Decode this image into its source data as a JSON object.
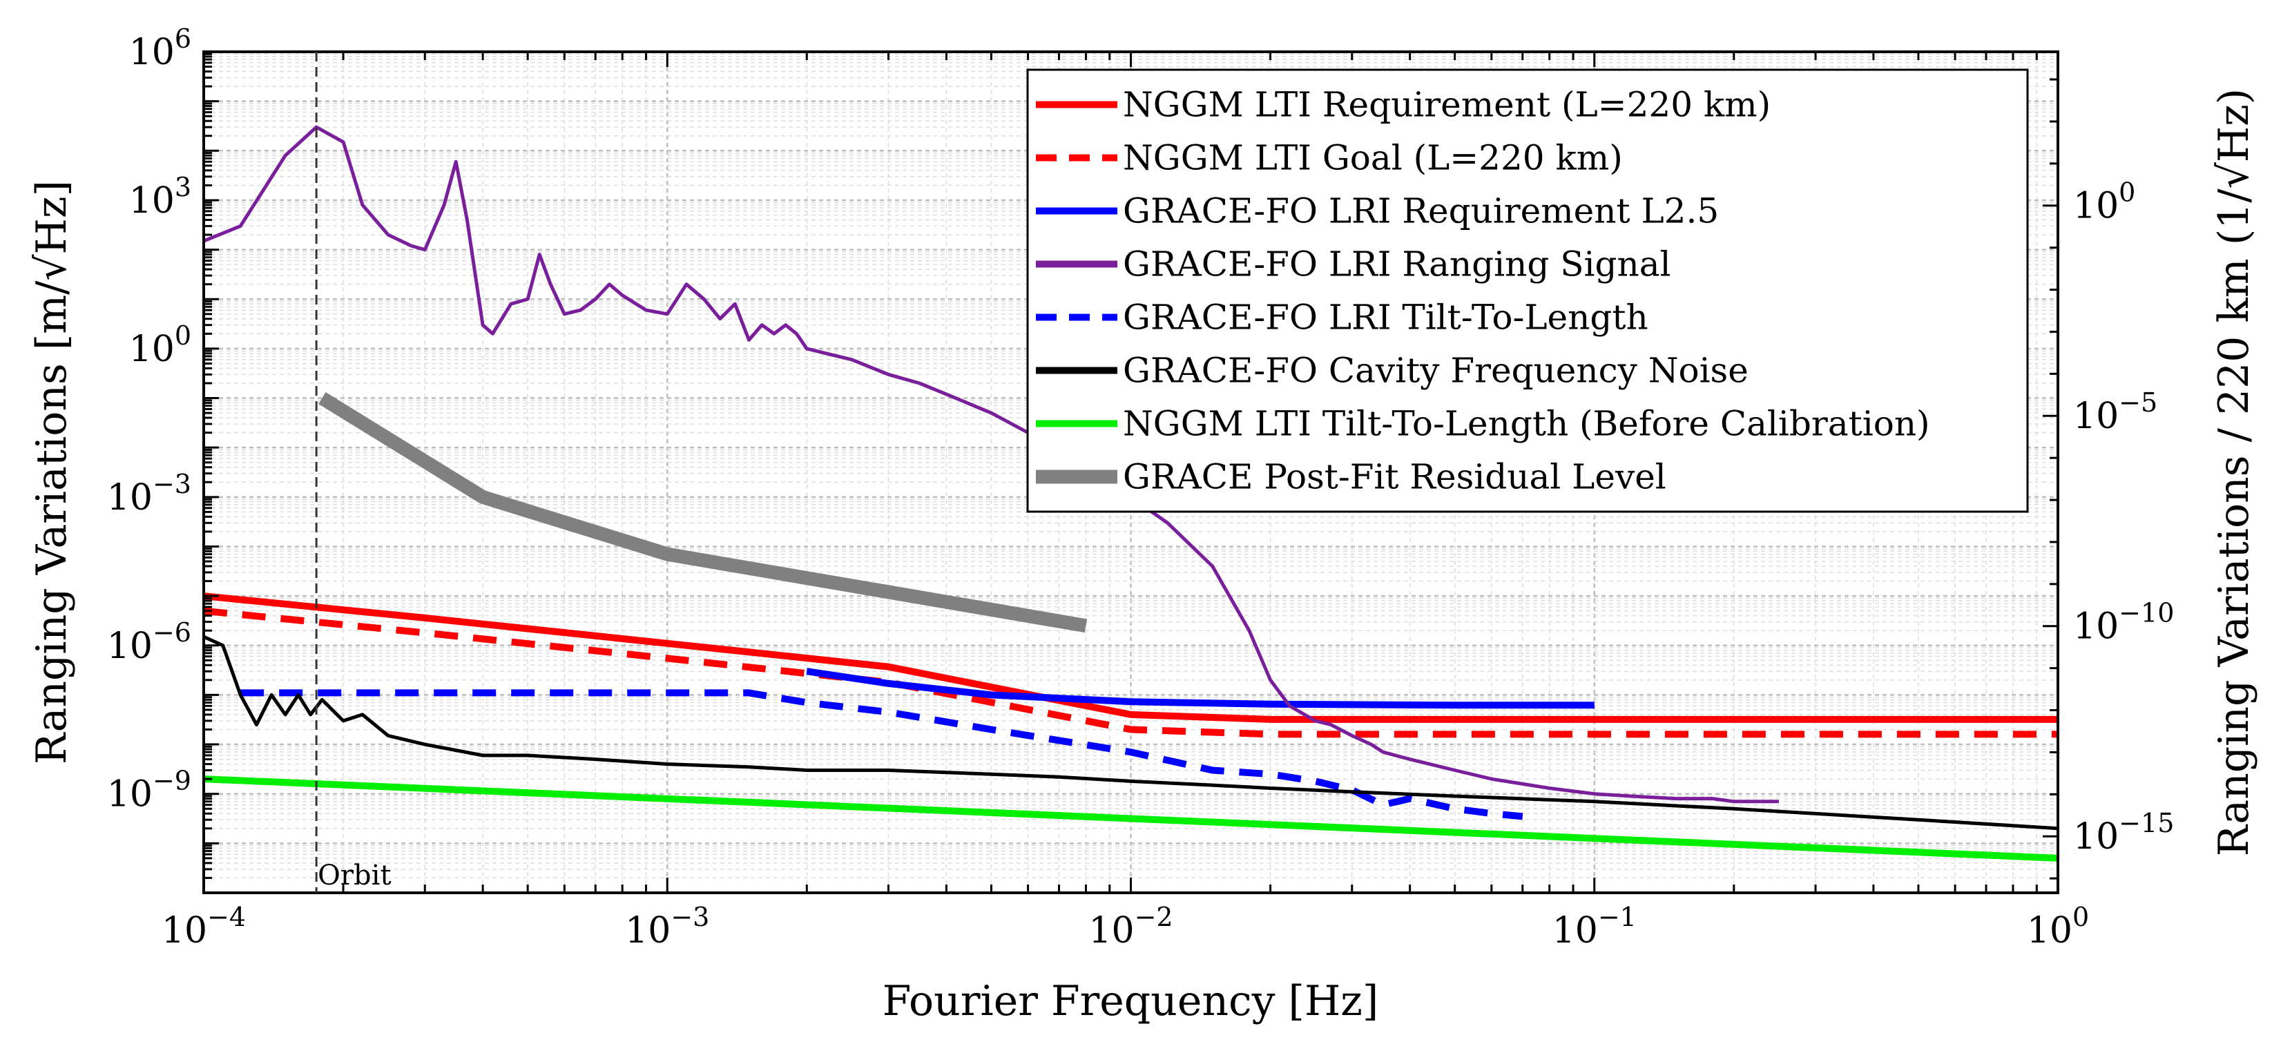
{
  "chart_data": {
    "type": "line",
    "xscale": "log",
    "yscale": "log",
    "xlabel": "Fourier Frequency [Hz]",
    "ylabel": "Ranging Variations [m/√Hz]",
    "ylabel_right": "Ranging Variations / 220 km (1/√Hz)",
    "xlim": [
      0.0001,
      1
    ],
    "ylim": [
      1e-11,
      1000000.0
    ],
    "ylim_right": [
      4.545e-17,
      4545
    ],
    "x_ticks": [
      {
        "value": 0.0001,
        "base": "10",
        "exp": "−4"
      },
      {
        "value": 0.001,
        "base": "10",
        "exp": "−3"
      },
      {
        "value": 0.01,
        "base": "10",
        "exp": "−2"
      },
      {
        "value": 0.1,
        "base": "10",
        "exp": "−1"
      },
      {
        "value": 1,
        "base": "10",
        "exp": "0"
      }
    ],
    "y_ticks": [
      {
        "value": 1e-09,
        "base": "10",
        "exp": "−9"
      },
      {
        "value": 1e-06,
        "base": "10",
        "exp": "−6"
      },
      {
        "value": 0.001,
        "base": "10",
        "exp": "−3"
      },
      {
        "value": 1,
        "base": "10",
        "exp": "0"
      },
      {
        "value": 1000,
        "base": "10",
        "exp": "3"
      },
      {
        "value": 1000000,
        "base": "10",
        "exp": "6"
      }
    ],
    "y_right_ticks": [
      {
        "value": 1e-15,
        "base": "10",
        "exp": "−15"
      },
      {
        "value": 1e-10,
        "base": "10",
        "exp": "−10"
      },
      {
        "value": 1e-05,
        "base": "10",
        "exp": "−5"
      },
      {
        "value": 1,
        "base": "10",
        "exp": "0"
      }
    ],
    "grid": true,
    "legend_position": "top-right",
    "annotations": [
      {
        "text": "Orbit",
        "x": 0.000175
      }
    ],
    "series": [
      {
        "name": "NGGM LTI Requirement (L=220 km)",
        "color": "#ff0000",
        "style": "solid",
        "width": 10,
        "x": [
          0.0001,
          0.0003,
          0.001,
          0.003,
          0.01,
          0.02,
          0.05,
          0.1,
          1
        ],
        "y": [
          1e-05,
          3.6e-06,
          1.1e-06,
          3.7e-07,
          4e-08,
          3.2e-08,
          3.2e-08,
          3.2e-08,
          3.2e-08
        ]
      },
      {
        "name": "NGGM LTI Goal (L=220 km)",
        "color": "#ff0000",
        "style": "dashed",
        "width": 10,
        "x": [
          0.0001,
          0.0003,
          0.001,
          0.003,
          0.01,
          0.02,
          0.05,
          0.1,
          1
        ],
        "y": [
          5e-06,
          1.8e-06,
          5.5e-07,
          1.8e-07,
          2e-08,
          1.6e-08,
          1.6e-08,
          1.6e-08,
          1.6e-08
        ]
      },
      {
        "name": "GRACE-FO LRI Requirement L2.5",
        "color": "#0000ff",
        "style": "solid",
        "width": 10,
        "x": [
          0.002,
          0.003,
          0.005,
          0.01,
          0.02,
          0.05,
          0.1
        ],
        "y": [
          3e-07,
          1.7e-07,
          1e-07,
          7.3e-08,
          6.5e-08,
          6.2e-08,
          6.2e-08
        ]
      },
      {
        "name": "GRACE-FO LRI Ranging Signal",
        "color": "#7a1f9c",
        "style": "solid",
        "width": 5,
        "x": [
          0.0001,
          0.00012,
          0.00015,
          0.000175,
          0.0002,
          0.00022,
          0.00025,
          0.00028,
          0.0003,
          0.00033,
          0.00035,
          0.00037,
          0.0004,
          0.00042,
          0.00046,
          0.0005,
          0.00053,
          0.00056,
          0.0006,
          0.00065,
          0.0007,
          0.00075,
          0.0008,
          0.0009,
          0.001,
          0.0011,
          0.0012,
          0.0013,
          0.0014,
          0.0015,
          0.0016,
          0.0017,
          0.0018,
          0.0019,
          0.002,
          0.0022,
          0.0025,
          0.003,
          0.0035,
          0.004,
          0.005,
          0.006,
          0.007,
          0.008,
          0.009,
          0.01,
          0.012,
          0.015,
          0.018,
          0.02,
          0.022,
          0.025,
          0.027,
          0.03,
          0.033,
          0.035,
          0.04,
          0.05,
          0.06,
          0.08,
          0.1,
          0.12,
          0.15,
          0.18,
          0.2,
          0.25
        ],
        "y": [
          150,
          300,
          8000,
          30000,
          15000,
          800,
          200,
          120,
          100,
          800,
          6000,
          400,
          3,
          2,
          8,
          10,
          80,
          20,
          5,
          6,
          10,
          20,
          12,
          6,
          5,
          20,
          10,
          4,
          8,
          1.5,
          3,
          2,
          3,
          2,
          1,
          0.8,
          0.6,
          0.3,
          0.2,
          0.12,
          0.05,
          0.02,
          0.01,
          0.005,
          0.002,
          0.001,
          0.0003,
          4e-05,
          2e-06,
          2e-07,
          6e-08,
          3e-08,
          2.5e-08,
          1.5e-08,
          1e-08,
          7e-09,
          5e-09,
          3e-09,
          2e-09,
          1.3e-09,
          1e-09,
          9e-10,
          8e-10,
          8e-10,
          7e-10,
          7e-10
        ]
      },
      {
        "name": "GRACE-FO LRI Tilt-To-Length",
        "color": "#0000ff",
        "style": "dashed",
        "width": 10,
        "x": [
          0.00012,
          0.0002,
          0.0005,
          0.001,
          0.0015,
          0.002,
          0.003,
          0.005,
          0.01,
          0.015,
          0.02,
          0.025,
          0.03,
          0.035,
          0.04,
          0.05,
          0.06,
          0.07
        ],
        "y": [
          1.1e-07,
          1.1e-07,
          1.1e-07,
          1.1e-07,
          1.1e-07,
          7e-08,
          4.5e-08,
          2e-08,
          7e-09,
          3e-09,
          2.5e-09,
          1.8e-09,
          1.2e-09,
          6e-10,
          8e-10,
          5e-10,
          4e-10,
          3.5e-10
        ]
      },
      {
        "name": "GRACE-FO Cavity Frequency Noise",
        "color": "#000000",
        "style": "solid",
        "width": 5,
        "x": [
          0.0001,
          0.00011,
          0.00012,
          0.00013,
          0.00014,
          0.00015,
          0.00016,
          0.00017,
          0.00018,
          0.0002,
          0.00022,
          0.00025,
          0.0003,
          0.0004,
          0.0005,
          0.0007,
          0.001,
          0.0015,
          0.002,
          0.003,
          0.005,
          0.007,
          0.01,
          0.015,
          0.02,
          0.03,
          0.05,
          0.1,
          0.2,
          0.5,
          1
        ],
        "y": [
          1.5e-06,
          1e-06,
          1e-07,
          2.5e-08,
          1e-07,
          4e-08,
          1e-07,
          4e-08,
          8e-08,
          3e-08,
          4e-08,
          1.5e-08,
          1e-08,
          6e-09,
          6e-09,
          5e-09,
          4e-09,
          3.5e-09,
          3e-09,
          3e-09,
          2.5e-09,
          2.2e-09,
          1.8e-09,
          1.5e-09,
          1.3e-09,
          1.1e-09,
          9e-10,
          7e-10,
          5e-10,
          3e-10,
          2e-10
        ]
      },
      {
        "name": "NGGM LTI Tilt-To-Length (Before Calibration)",
        "color": "#00ee00",
        "style": "solid",
        "width": 10,
        "x": [
          0.0001,
          1
        ],
        "y": [
          2e-09,
          5e-11
        ]
      },
      {
        "name": "GRACE Post-Fit Residual Level",
        "color": "#808080",
        "style": "solid",
        "width": 20,
        "x": [
          0.00018,
          0.0004,
          0.001,
          0.003,
          0.008
        ],
        "y": [
          0.1,
          0.001,
          7e-05,
          1.2e-05,
          2.5e-06
        ]
      }
    ]
  }
}
